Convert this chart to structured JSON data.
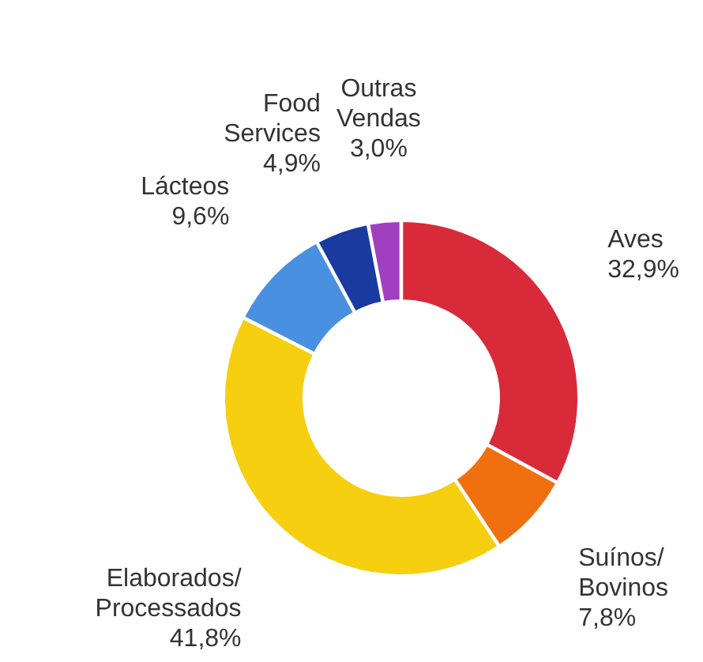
{
  "chart_data": {
    "type": "donut",
    "categories": [
      "Aves",
      "Suínos/Bovinos",
      "Elaborados/Processados",
      "Lácteos",
      "Food Services",
      "Outras Vendas"
    ],
    "values": [
      32.9,
      7.8,
      41.8,
      9.6,
      4.9,
      3.0
    ],
    "value_labels": [
      "32,9%",
      "7,8%",
      "41,8%",
      "9,6%",
      "4,9%",
      "3,0%"
    ],
    "colors": [
      "#d92a3a",
      "#f07010",
      "#f5cf10",
      "#4a90e0",
      "#1a3aa0",
      "#a040c0"
    ]
  }
}
